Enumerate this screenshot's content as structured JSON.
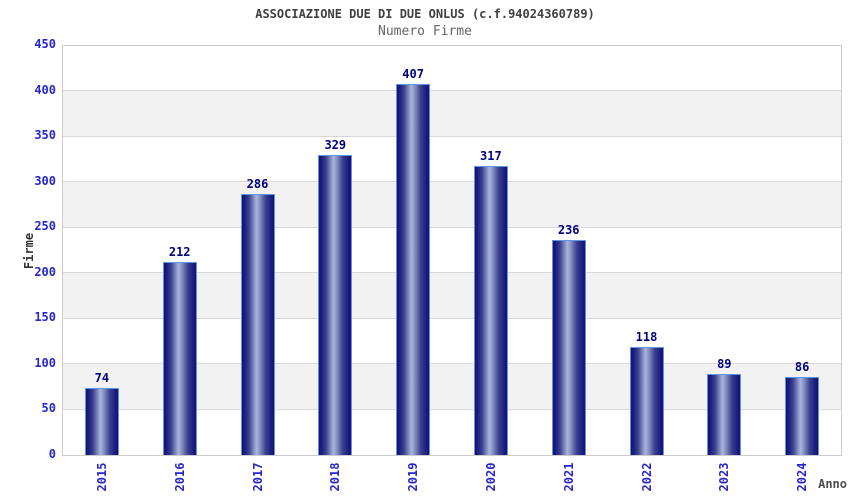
{
  "chart_data": {
    "type": "bar",
    "title": "ASSOCIAZIONE DUE DI DUE ONLUS (c.f.94024360789)",
    "subtitle": "Numero Firme",
    "xlabel": "Anno",
    "ylabel": "Firme",
    "categories": [
      "2015",
      "2016",
      "2017",
      "2018",
      "2019",
      "2020",
      "2021",
      "2022",
      "2023",
      "2024"
    ],
    "values": [
      74,
      212,
      286,
      329,
      407,
      317,
      236,
      118,
      89,
      86
    ],
    "ylim": [
      0,
      450
    ],
    "ytick_step": 50,
    "grid": true,
    "legend": "none",
    "colors": {
      "bar_dark": "#131370",
      "bar_highlight": "#abb5da",
      "bar_border": "#5e95e8",
      "tick_label": "#2626cc",
      "value_label": "#000080",
      "band_gray": "#f2f2f2",
      "gridline": "#d9d9d9",
      "plot_border": "#cccccc",
      "title_color": "#404040",
      "subtitle_color": "#666666",
      "axis_title_color": "#333333"
    }
  }
}
